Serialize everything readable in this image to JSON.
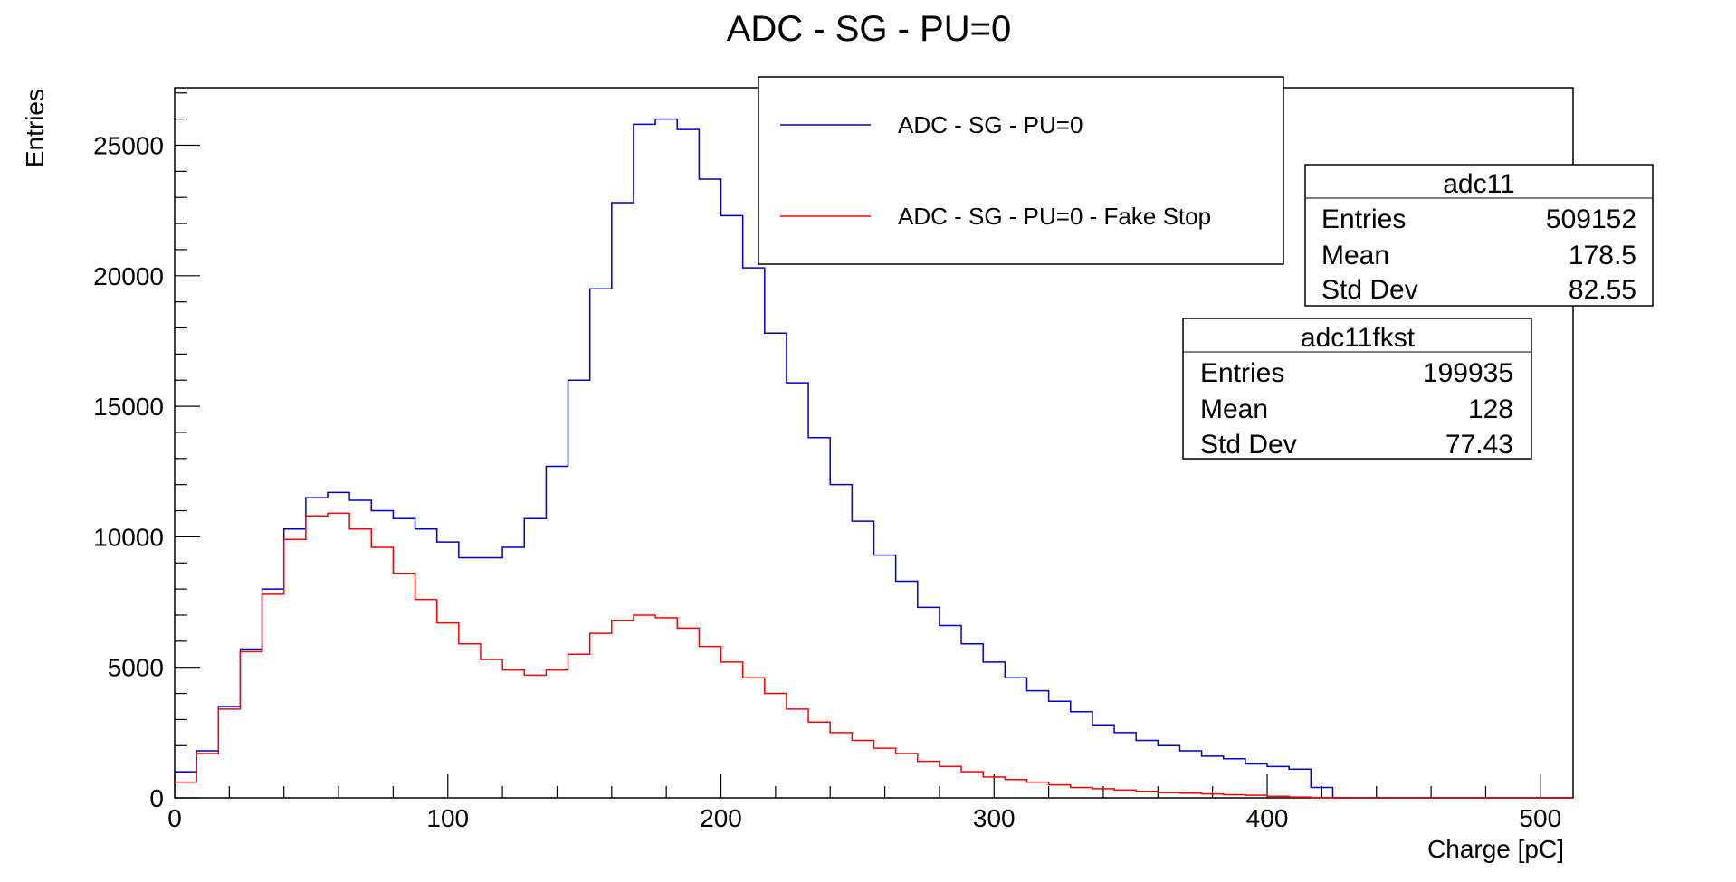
{
  "chart_data": {
    "type": "histogram",
    "title": "ADC - SG - PU=0",
    "xlabel": "Charge [pC]",
    "ylabel": "Entries",
    "xlim": [
      0,
      512
    ],
    "ylim": [
      0,
      27200
    ],
    "bin_width": 8,
    "x_ticks": [
      "0",
      "100",
      "200",
      "300",
      "400",
      "500"
    ],
    "y_ticks": [
      "0",
      "5000",
      "10000",
      "15000",
      "20000",
      "25000"
    ],
    "grid": false,
    "legend": {
      "position": "top-center",
      "entries": [
        {
          "label": "ADC - SG - PU=0",
          "color": "#0000cc"
        },
        {
          "label": "ADC - SG - PU=0 - Fake Stop",
          "color": "#ff0000"
        }
      ]
    },
    "series": [
      {
        "color": "#0000cc",
        "bin_edges_start": 0,
        "values": [
          1000,
          1800,
          3500,
          5700,
          8000,
          10300,
          11500,
          11700,
          11400,
          11000,
          10700,
          10300,
          9800,
          9200,
          9200,
          9600,
          10700,
          12700,
          16000,
          19500,
          22800,
          25800,
          26000,
          25600,
          23700,
          22300,
          20300,
          17800,
          15900,
          13800,
          12000,
          10600,
          9300,
          8300,
          7300,
          6600,
          5900,
          5200,
          4600,
          4100,
          3700,
          3300,
          2800,
          2500,
          2200,
          2000,
          1800,
          1600,
          1500,
          1300,
          1200,
          1100,
          400,
          0,
          0,
          0,
          0,
          0,
          0,
          0,
          0,
          0,
          0,
          0
        ]
      },
      {
        "color": "#ff0000",
        "bin_edges_start": 0,
        "values": [
          600,
          1700,
          3400,
          5600,
          7800,
          9900,
          10800,
          10900,
          10300,
          9600,
          8600,
          7600,
          6700,
          5900,
          5300,
          4900,
          4700,
          4900,
          5500,
          6300,
          6800,
          7000,
          6900,
          6500,
          5800,
          5200,
          4600,
          4000,
          3400,
          2900,
          2500,
          2200,
          1900,
          1700,
          1400,
          1200,
          1000,
          800,
          700,
          600,
          500,
          400,
          350,
          300,
          250,
          200,
          180,
          150,
          120,
          100,
          60,
          30,
          10,
          0,
          0,
          0,
          0,
          0,
          0,
          0,
          0,
          0,
          0,
          0
        ]
      }
    ],
    "stats_boxes": [
      {
        "name": "adc11",
        "rows": [
          [
            "Entries",
            "509152"
          ],
          [
            "Mean",
            "178.5"
          ],
          [
            "Std Dev",
            "82.55"
          ]
        ]
      },
      {
        "name": "adc11fkst",
        "rows": [
          [
            "Entries",
            "199935"
          ],
          [
            "Mean",
            "128"
          ],
          [
            "Std Dev",
            "77.43"
          ]
        ]
      }
    ]
  }
}
